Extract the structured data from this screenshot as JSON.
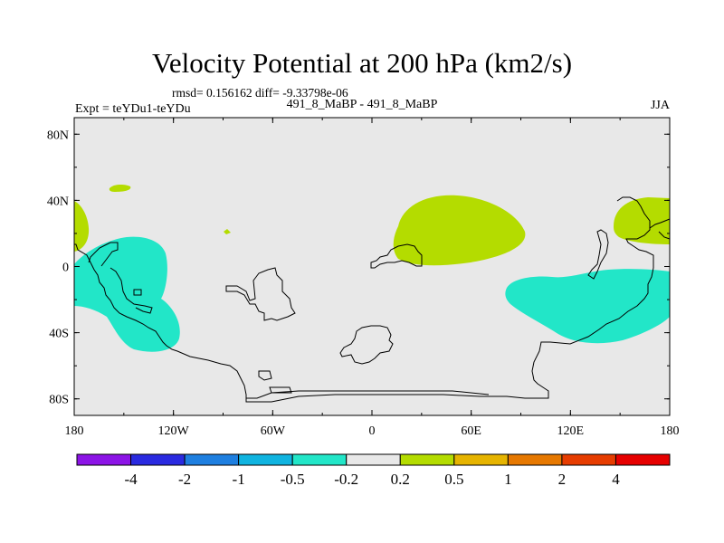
{
  "title": "Velocity Potential at 200 hPa (km2/s)",
  "stats_text": "rmsd= 0.156162 diff= -9.33798e-06",
  "subtitle": "491_8_MaBP - 491_8_MaBP",
  "expt_label": "Expt = teYDu1-teYDu",
  "season": "JJA",
  "lat_ticks": [
    "80N",
    "40N",
    "0",
    "40S",
    "80S"
  ],
  "lon_ticks": [
    "180",
    "120W",
    "60W",
    "0",
    "60E",
    "120E",
    "180"
  ],
  "colorbar": {
    "colors": [
      "#8c14e6",
      "#2a2ae0",
      "#1e7fe0",
      "#10b4e0",
      "#22e6c8",
      "#e8e8e8",
      "#b4dc00",
      "#e6b400",
      "#e67800",
      "#e63c00",
      "#e60000"
    ],
    "labels": [
      "-4",
      "-2",
      "-1",
      "-0.5",
      "-0.2",
      "0.2",
      "0.5",
      "1",
      "2",
      "4"
    ]
  },
  "colors": {
    "background": "#e8e8e8",
    "positive": "#b4dc00",
    "negative": "#22e6c8",
    "coast": "#000000"
  }
}
